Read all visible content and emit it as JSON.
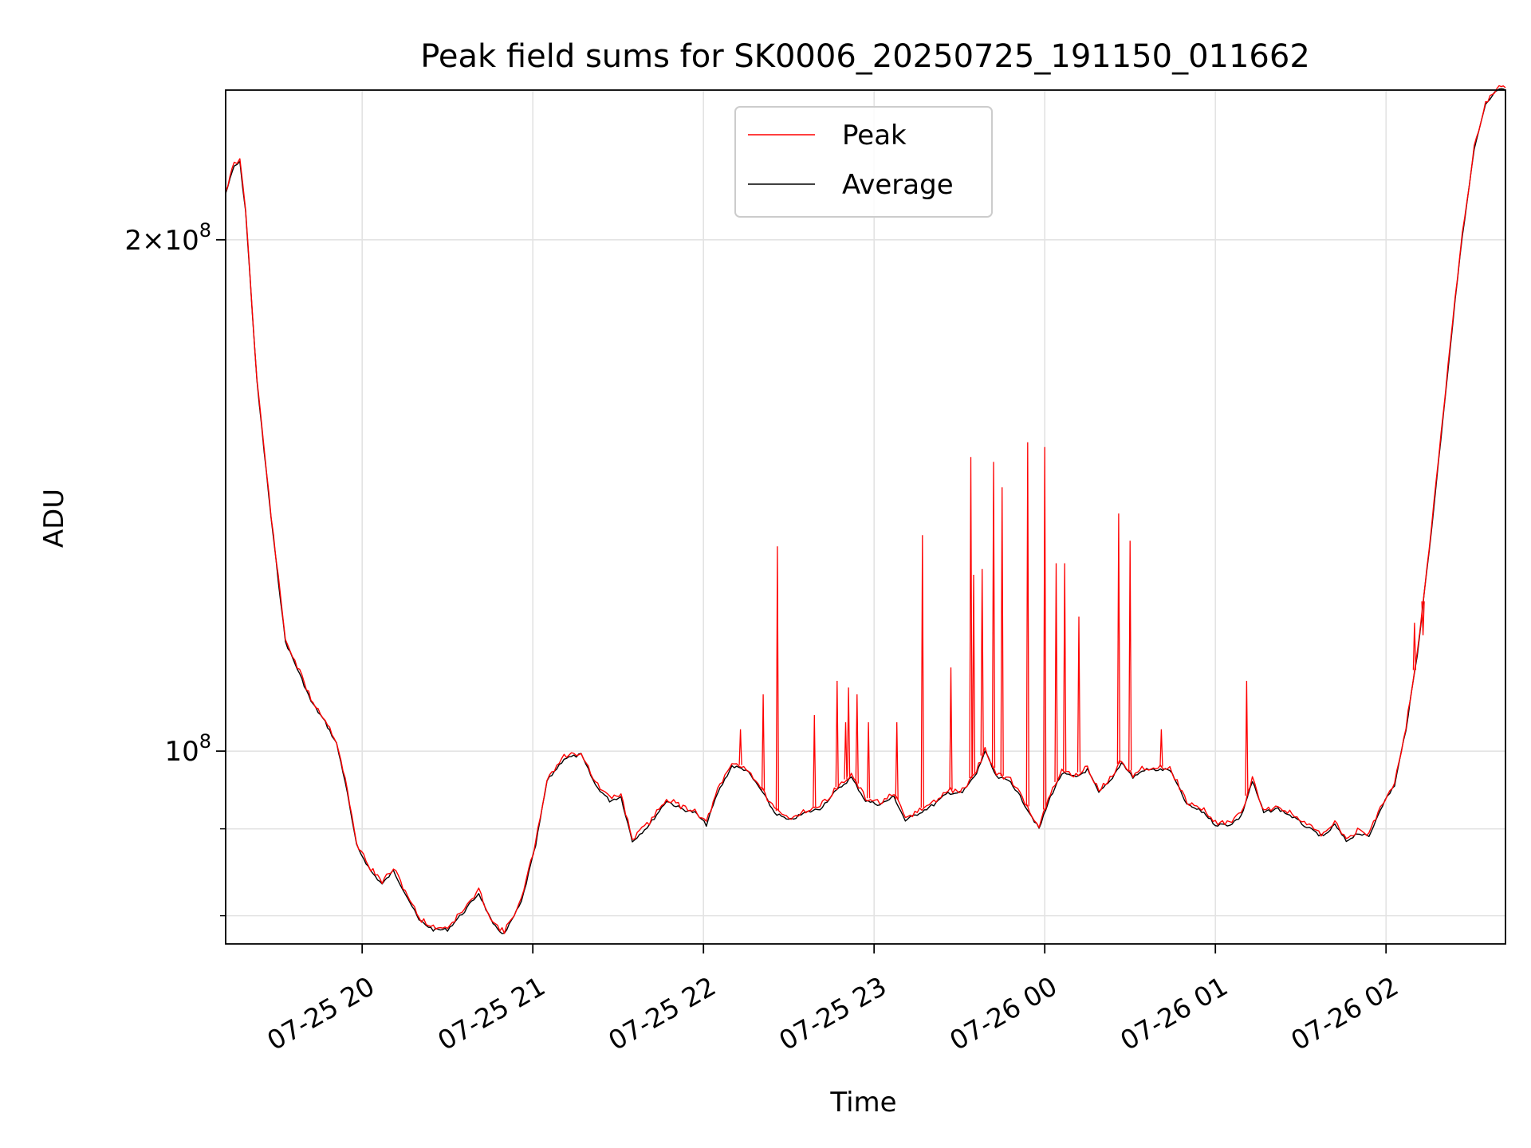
{
  "chart_data": {
    "type": "line",
    "title": "Peak field sums for SK0006_20250725_191150_011662",
    "xlabel": "Time",
    "ylabel": "ADU",
    "y_scale": "log",
    "grid": true,
    "legend_position": "top-center",
    "xlim": [
      "2025-07-25 19:12",
      "2025-07-26 02:42"
    ],
    "ylim": [
      77000000,
      245000000
    ],
    "x_ticks": [
      {
        "value": "2025-07-25 20:00",
        "label": "07-25 20"
      },
      {
        "value": "2025-07-25 21:00",
        "label": "07-25 21"
      },
      {
        "value": "2025-07-25 22:00",
        "label": "07-25 22"
      },
      {
        "value": "2025-07-25 23:00",
        "label": "07-25 23"
      },
      {
        "value": "2025-07-26 00:00",
        "label": "07-26 00"
      },
      {
        "value": "2025-07-26 01:00",
        "label": "07-26 01"
      },
      {
        "value": "2025-07-26 02:00",
        "label": "07-26 02"
      }
    ],
    "y_ticks": [
      {
        "value": 100000000,
        "base": "10",
        "exp": "8",
        "mantissa": ""
      },
      {
        "value": 200000000,
        "base": "10",
        "exp": "8",
        "mantissa": "2×"
      }
    ],
    "y_minor_ticks": [
      80000000,
      90000000
    ],
    "series": [
      {
        "name": "Average",
        "color": "#000000",
        "points": [
          [
            "2025-07-25 19:12",
            213000000
          ],
          [
            "2025-07-25 19:15",
            221000000
          ],
          [
            "2025-07-25 19:17",
            222000000
          ],
          [
            "2025-07-25 19:19",
            208000000
          ],
          [
            "2025-07-25 19:23",
            165000000
          ],
          [
            "2025-07-25 19:28",
            137000000
          ],
          [
            "2025-07-25 19:33",
            116000000
          ],
          [
            "2025-07-25 19:38",
            111000000
          ],
          [
            "2025-07-25 19:42",
            107000000
          ],
          [
            "2025-07-25 19:47",
            104000000
          ],
          [
            "2025-07-25 19:51",
            101000000
          ],
          [
            "2025-07-25 19:54",
            96000000
          ],
          [
            "2025-07-25 19:58",
            88000000
          ],
          [
            "2025-07-25 20:03",
            85000000
          ],
          [
            "2025-07-25 20:07",
            83500000
          ],
          [
            "2025-07-25 20:11",
            85000000
          ],
          [
            "2025-07-25 20:16",
            82000000
          ],
          [
            "2025-07-25 20:20",
            79500000
          ],
          [
            "2025-07-25 20:25",
            78500000
          ],
          [
            "2025-07-25 20:30",
            78500000
          ],
          [
            "2025-07-25 20:36",
            80500000
          ],
          [
            "2025-07-25 20:41",
            82500000
          ],
          [
            "2025-07-25 20:46",
            79000000
          ],
          [
            "2025-07-25 20:50",
            78000000
          ],
          [
            "2025-07-25 20:56",
            81500000
          ],
          [
            "2025-07-25 21:01",
            88000000
          ],
          [
            "2025-07-25 21:05",
            96000000
          ],
          [
            "2025-07-25 21:11",
            99000000
          ],
          [
            "2025-07-25 21:17",
            99500000
          ],
          [
            "2025-07-25 21:22",
            95500000
          ],
          [
            "2025-07-25 21:27",
            93500000
          ],
          [
            "2025-07-25 21:31",
            94000000
          ],
          [
            "2025-07-25 21:35",
            88500000
          ],
          [
            "2025-07-25 21:41",
            90500000
          ],
          [
            "2025-07-25 21:47",
            93500000
          ],
          [
            "2025-07-25 21:52",
            92500000
          ],
          [
            "2025-07-25 21:57",
            92000000
          ],
          [
            "2025-07-25 22:01",
            90500000
          ],
          [
            "2025-07-25 22:05",
            94500000
          ],
          [
            "2025-07-25 22:10",
            98000000
          ],
          [
            "2025-07-25 22:15",
            97500000
          ],
          [
            "2025-07-25 22:20",
            95000000
          ],
          [
            "2025-07-25 22:25",
            92000000
          ],
          [
            "2025-07-25 22:30",
            91000000
          ],
          [
            "2025-07-25 22:36",
            92000000
          ],
          [
            "2025-07-25 22:41",
            92500000
          ],
          [
            "2025-07-25 22:46",
            94500000
          ],
          [
            "2025-07-25 22:52",
            96500000
          ],
          [
            "2025-07-25 22:57",
            93500000
          ],
          [
            "2025-07-25 23:02",
            93000000
          ],
          [
            "2025-07-25 23:07",
            94000000
          ],
          [
            "2025-07-25 23:11",
            91000000
          ],
          [
            "2025-07-25 23:16",
            92000000
          ],
          [
            "2025-07-25 23:21",
            93000000
          ],
          [
            "2025-07-25 23:26",
            94500000
          ],
          [
            "2025-07-25 23:31",
            94500000
          ],
          [
            "2025-07-25 23:36",
            97000000
          ],
          [
            "2025-07-25 23:39",
            100000000
          ],
          [
            "2025-07-25 23:43",
            96500000
          ],
          [
            "2025-07-25 23:48",
            96000000
          ],
          [
            "2025-07-25 23:53",
            93000000
          ],
          [
            "2025-07-25 23:58",
            90000000
          ],
          [
            "2025-07-26 00:02",
            94000000
          ],
          [
            "2025-07-26 00:06",
            97000000
          ],
          [
            "2025-07-26 00:11",
            96500000
          ],
          [
            "2025-07-26 00:15",
            97500000
          ],
          [
            "2025-07-26 00:19",
            94500000
          ],
          [
            "2025-07-26 00:23",
            96000000
          ],
          [
            "2025-07-26 00:27",
            98500000
          ],
          [
            "2025-07-26 00:31",
            96500000
          ],
          [
            "2025-07-26 00:35",
            97500000
          ],
          [
            "2025-07-26 00:39",
            97500000
          ],
          [
            "2025-07-26 00:44",
            97500000
          ],
          [
            "2025-07-26 00:50",
            93000000
          ],
          [
            "2025-07-26 00:56",
            92000000
          ],
          [
            "2025-07-26 01:00",
            90500000
          ],
          [
            "2025-07-26 01:05",
            90500000
          ],
          [
            "2025-07-26 01:09",
            91500000
          ],
          [
            "2025-07-26 01:13",
            96000000
          ],
          [
            "2025-07-26 01:17",
            92000000
          ],
          [
            "2025-07-26 01:22",
            92500000
          ],
          [
            "2025-07-26 01:27",
            91500000
          ],
          [
            "2025-07-26 01:33",
            90000000
          ],
          [
            "2025-07-26 01:38",
            89000000
          ],
          [
            "2025-07-26 01:42",
            90500000
          ],
          [
            "2025-07-26 01:46",
            88500000
          ],
          [
            "2025-07-26 01:50",
            89500000
          ],
          [
            "2025-07-26 01:54",
            89000000
          ],
          [
            "2025-07-26 01:58",
            92500000
          ],
          [
            "2025-07-26 02:03",
            95500000
          ],
          [
            "2025-07-26 02:07",
            103000000
          ],
          [
            "2025-07-26 02:11",
            114000000
          ],
          [
            "2025-07-26 02:16",
            135000000
          ],
          [
            "2025-07-26 02:21",
            163000000
          ],
          [
            "2025-07-26 02:26",
            196000000
          ],
          [
            "2025-07-26 02:31",
            226000000
          ],
          [
            "2025-07-26 02:35",
            240000000
          ],
          [
            "2025-07-26 02:39",
            245000000
          ],
          [
            "2025-07-26 02:42",
            245000000
          ]
        ]
      },
      {
        "name": "Peak",
        "color": "#ff0000",
        "spikes": [
          [
            "2025-07-25 22:13",
            103000000
          ],
          [
            "2025-07-25 22:21",
            108000000
          ],
          [
            "2025-07-25 22:26",
            132000000
          ],
          [
            "2025-07-25 22:39",
            105000000
          ],
          [
            "2025-07-25 22:47",
            110000000
          ],
          [
            "2025-07-25 22:50",
            104000000
          ],
          [
            "2025-07-25 22:51",
            109000000
          ],
          [
            "2025-07-25 22:54",
            108000000
          ],
          [
            "2025-07-25 22:58",
            104000000
          ],
          [
            "2025-07-25 23:08",
            104000000
          ],
          [
            "2025-07-25 23:17",
            134000000
          ],
          [
            "2025-07-25 23:27",
            112000000
          ],
          [
            "2025-07-25 23:34",
            149000000
          ],
          [
            "2025-07-25 23:35",
            127000000
          ],
          [
            "2025-07-25 23:38",
            128000000
          ],
          [
            "2025-07-25 23:42",
            148000000
          ],
          [
            "2025-07-25 23:45",
            143000000
          ],
          [
            "2025-07-25 23:54",
            152000000
          ],
          [
            "2025-07-26 00:00",
            151000000
          ],
          [
            "2025-07-26 00:04",
            129000000
          ],
          [
            "2025-07-26 00:07",
            129000000
          ],
          [
            "2025-07-26 00:12",
            120000000
          ],
          [
            "2025-07-26 00:26",
            138000000
          ],
          [
            "2025-07-26 00:30",
            133000000
          ],
          [
            "2025-07-26 00:41",
            103000000
          ],
          [
            "2025-07-26 01:11",
            110000000
          ],
          [
            "2025-07-26 02:10",
            119000000
          ],
          [
            "2025-07-26 02:13",
            117000000
          ]
        ]
      }
    ]
  }
}
